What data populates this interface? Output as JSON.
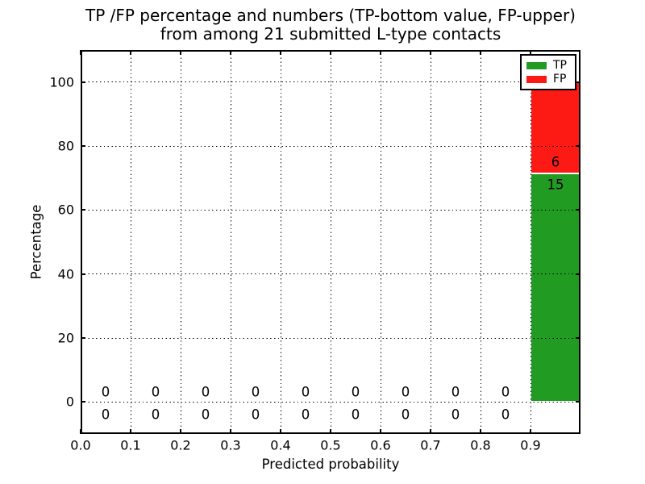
{
  "figure": {
    "title_line1": "TP /FP percentage and numbers (TP-bottom value, FP-upper)",
    "title_line2": "from among 21 submitted L-type contacts",
    "xlabel": "Predicted probability",
    "ylabel": "Percentage"
  },
  "chart_data": {
    "type": "bar",
    "stacked": true,
    "title": "TP /FP percentage and numbers (TP-bottom value, FP-upper)\nfrom among 21 submitted L-type contacts",
    "xlabel": "Predicted probability",
    "ylabel": "Percentage",
    "xlim": [
      0.0,
      1.0
    ],
    "ylim": [
      -10,
      110
    ],
    "xticks": {
      "values": [
        0.0,
        0.1,
        0.2,
        0.3,
        0.4,
        0.5,
        0.6,
        0.7,
        0.8,
        0.9
      ],
      "labels": [
        "0.0",
        "0.1",
        "0.2",
        "0.3",
        "0.4",
        "0.5",
        "0.6",
        "0.7",
        "0.8",
        "0.9"
      ]
    },
    "yticks": {
      "values": [
        0,
        20,
        40,
        60,
        80,
        100
      ],
      "labels": [
        "0",
        "20",
        "40",
        "60",
        "80",
        "100"
      ]
    },
    "grid": {
      "on": true,
      "style": "dotted",
      "color": "#000000"
    },
    "total_contacts": 21,
    "bin_width": 0.1,
    "bin_centers": [
      0.05,
      0.15,
      0.25,
      0.35,
      0.45,
      0.55,
      0.65,
      0.75,
      0.85,
      0.95
    ],
    "series": [
      {
        "name": "TP",
        "color": "#229b22",
        "counts": [
          0,
          0,
          0,
          0,
          0,
          0,
          0,
          0,
          0,
          15
        ]
      },
      {
        "name": "FP",
        "color": "#fd1a15",
        "counts": [
          0,
          0,
          0,
          0,
          0,
          0,
          0,
          0,
          0,
          6
        ]
      }
    ],
    "bar_edge_color": "#ffffff",
    "legend": {
      "position": "upper right",
      "entries": [
        {
          "label": "TP",
          "color": "#229b22"
        },
        {
          "label": "FP",
          "color": "#fd1a15"
        }
      ]
    },
    "annotations": [
      {
        "x": 0.05,
        "y": 3,
        "text": "0"
      },
      {
        "x": 0.05,
        "y": -4,
        "text": "0"
      },
      {
        "x": 0.15,
        "y": 3,
        "text": "0"
      },
      {
        "x": 0.15,
        "y": -4,
        "text": "0"
      },
      {
        "x": 0.25,
        "y": 3,
        "text": "0"
      },
      {
        "x": 0.25,
        "y": -4,
        "text": "0"
      },
      {
        "x": 0.35,
        "y": 3,
        "text": "0"
      },
      {
        "x": 0.35,
        "y": -4,
        "text": "0"
      },
      {
        "x": 0.45,
        "y": 3,
        "text": "0"
      },
      {
        "x": 0.45,
        "y": -4,
        "text": "0"
      },
      {
        "x": 0.55,
        "y": 3,
        "text": "0"
      },
      {
        "x": 0.55,
        "y": -4,
        "text": "0"
      },
      {
        "x": 0.65,
        "y": 3,
        "text": "0"
      },
      {
        "x": 0.65,
        "y": -4,
        "text": "0"
      },
      {
        "x": 0.75,
        "y": 3,
        "text": "0"
      },
      {
        "x": 0.75,
        "y": -4,
        "text": "0"
      },
      {
        "x": 0.85,
        "y": 3,
        "text": "0"
      },
      {
        "x": 0.85,
        "y": -4,
        "text": "0"
      },
      {
        "x": 0.95,
        "y": 75,
        "text": "6"
      },
      {
        "x": 0.95,
        "y": 68,
        "text": "15"
      }
    ]
  }
}
